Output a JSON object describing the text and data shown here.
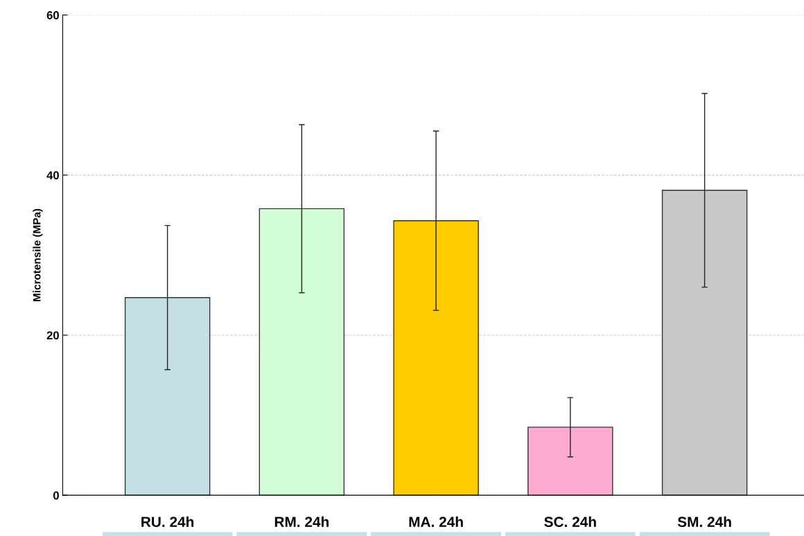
{
  "chart_data": {
    "type": "bar",
    "ylabel": "Microtensile (MPa)",
    "categories": [
      "RU. 24h",
      "RM. 24h",
      "MA. 24h",
      "SC. 24h",
      "SM. 24h"
    ],
    "values": [
      24.7,
      35.8,
      34.3,
      8.5,
      38.1
    ],
    "errors": [
      9.0,
      10.5,
      11.2,
      3.7,
      12.1
    ],
    "colors": [
      "#c5e0e5",
      "#d2fcd5",
      "#ffcc00",
      "#ffaad0",
      "#c8c8c8"
    ],
    "ylim": [
      0,
      60
    ],
    "yticks": [
      0,
      20,
      40,
      60
    ],
    "grid": "y",
    "legend": false
  }
}
